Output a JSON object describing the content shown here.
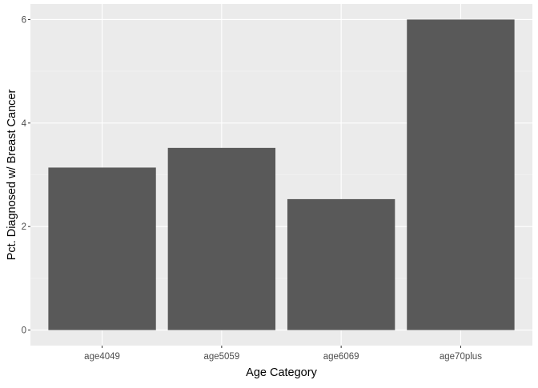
{
  "chart_data": {
    "type": "bar",
    "title": "",
    "xlabel": "Age Category",
    "ylabel": "Pct. Diagnosed w/ Breast Cancer",
    "categories": [
      "age4049",
      "age5059",
      "age6069",
      "age70plus"
    ],
    "values": [
      3.14,
      3.52,
      2.53,
      6.0
    ],
    "ylim": [
      -0.3,
      6.3
    ],
    "y_ticks": [
      0,
      2,
      4,
      6
    ],
    "grid": true,
    "legend": "none",
    "colors": {
      "bar": "#595959",
      "panel_background": "#ebebeb",
      "grid_major": "#ffffff",
      "grid_minor": "#f5f5f5"
    }
  }
}
